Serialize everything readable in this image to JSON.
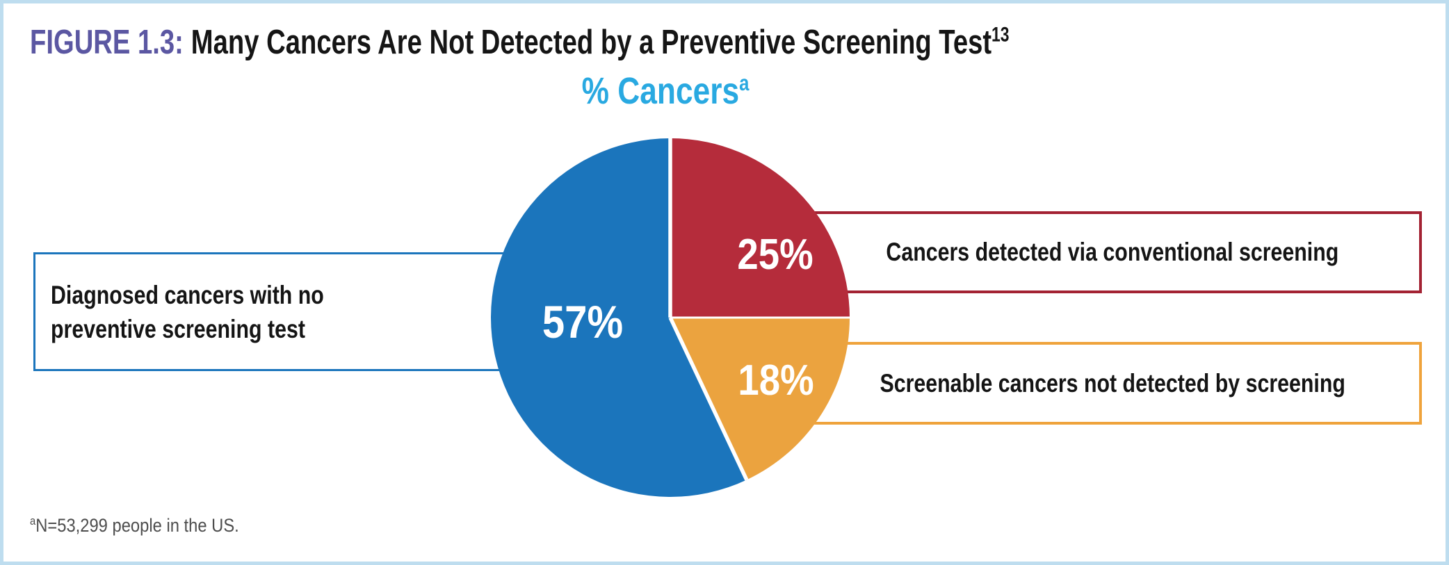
{
  "figure": {
    "label": "FIGURE 1.3:",
    "title": "Many Cancers Are Not Detected by a Preventive Screening Test",
    "title_superscript": "13"
  },
  "chart_title": {
    "text": "% Cancers",
    "superscript": "a"
  },
  "chart_data": {
    "type": "pie",
    "title": "% Cancers",
    "start_angle_deg": 0,
    "direction": "clockwise",
    "divider_color": "#FFFFFF",
    "legend_position": "callout-boxes",
    "slices": [
      {
        "id": "conventional-screening",
        "label": "Cancers detected via conventional screening",
        "value": 25,
        "pct_label": "25%",
        "color": "#B52C3B",
        "callout_border_color": "#A32233"
      },
      {
        "id": "screenable-not-detected",
        "label": "Screenable cancers not detected by screening",
        "value": 18,
        "pct_label": "18%",
        "color": "#EBA33F",
        "callout_border_color": "#EFA33C"
      },
      {
        "id": "no-screening-test",
        "label": "Diagnosed cancers with no preventive screening test",
        "value": 57,
        "pct_label": "57%",
        "color": "#1B75BC",
        "callout_border_color": "#1B75BC"
      }
    ]
  },
  "callouts": {
    "left": {
      "lines": [
        "Diagnosed cancers with no",
        "preventive screening test"
      ]
    },
    "top_right": {
      "text": "Cancers detected via conventional screening"
    },
    "bottom_right": {
      "text": "Screenable cancers not detected by screening"
    }
  },
  "footnote": {
    "superscript": "a",
    "text": "N=53,299 people in the US."
  },
  "colors": {
    "accent_blue": "#1B75BC",
    "accent_red": "#B52C3B",
    "accent_orange": "#EBA33F",
    "chart_title_blue": "#29A9E1",
    "figure_label_purple": "#5B57A2",
    "frame_light_blue": "#BEDDEF",
    "footnote_gray": "#4D4D4D",
    "text_black": "#151515"
  }
}
